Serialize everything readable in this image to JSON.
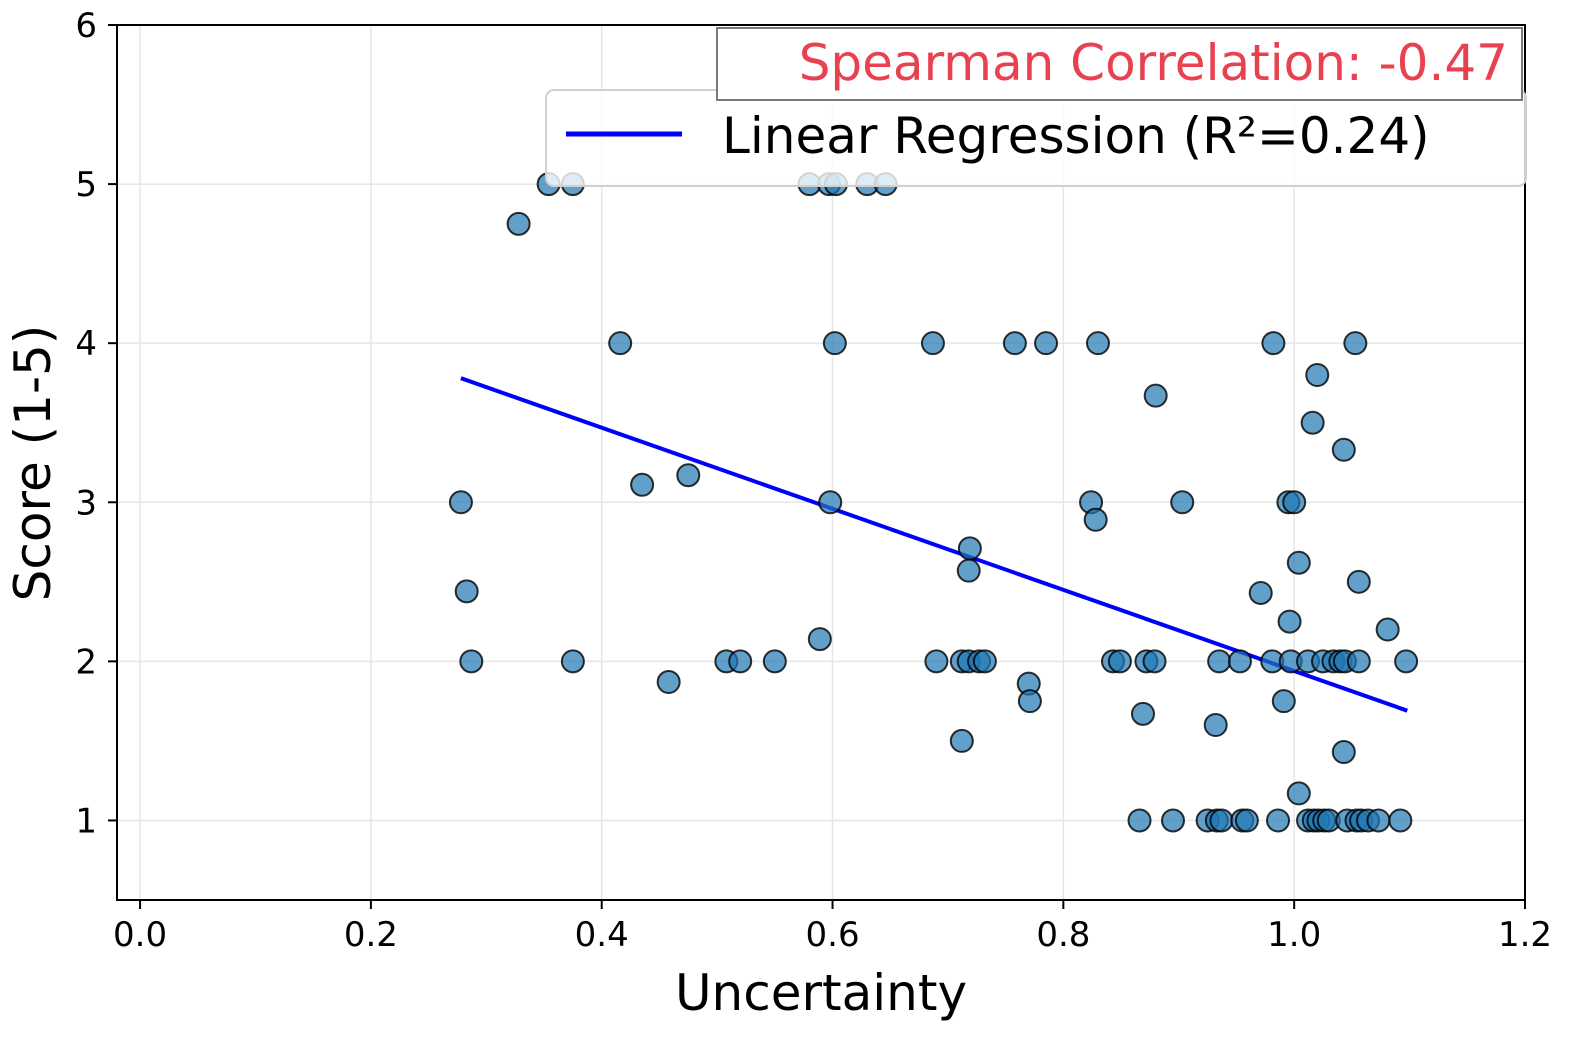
{
  "chart_data": {
    "type": "scatter",
    "xlabel": "Uncertainty",
    "ylabel": "Score (1-5)",
    "xlim": [
      -0.02,
      1.2
    ],
    "ylim": [
      0.5,
      6
    ],
    "xticks": [
      0.0,
      0.2,
      0.4,
      0.6,
      0.8,
      1.0,
      1.2
    ],
    "xtick_labels": [
      "0.0",
      "0.2",
      "0.4",
      "0.6",
      "0.8",
      "1.0",
      "1.2"
    ],
    "yticks": [
      1,
      2,
      3,
      4,
      5,
      6
    ],
    "ytick_labels": [
      "1",
      "2",
      "3",
      "4",
      "5",
      "6"
    ],
    "grid": true,
    "point_color": "#1f77b4",
    "line_color": "#0000ff",
    "annotation": {
      "text": "Spearman Correlation: -0.47",
      "color": "#e8414f",
      "placement": "top-right"
    },
    "legend": {
      "placement": "top-right",
      "entries": [
        {
          "label": "Linear Regression (R²=0.24)",
          "kind": "line"
        }
      ]
    },
    "regression": {
      "x": [
        0.278,
        1.098
      ],
      "y": [
        3.78,
        1.69
      ]
    },
    "points": [
      [
        0.354,
        5
      ],
      [
        0.375,
        5
      ],
      [
        0.58,
        5
      ],
      [
        0.597,
        5
      ],
      [
        0.603,
        5
      ],
      [
        0.63,
        5
      ],
      [
        0.646,
        5
      ],
      [
        0.328,
        4.75
      ],
      [
        0.416,
        4
      ],
      [
        0.602,
        4
      ],
      [
        0.687,
        4
      ],
      [
        0.758,
        4
      ],
      [
        0.785,
        4
      ],
      [
        0.83,
        4
      ],
      [
        0.982,
        4
      ],
      [
        1.053,
        4
      ],
      [
        1.02,
        3.8
      ],
      [
        0.88,
        3.67
      ],
      [
        1.016,
        3.5
      ],
      [
        1.043,
        3.33
      ],
      [
        0.475,
        3.17
      ],
      [
        0.435,
        3.11
      ],
      [
        0.278,
        3
      ],
      [
        0.598,
        3
      ],
      [
        0.824,
        3
      ],
      [
        0.903,
        3
      ],
      [
        0.995,
        3
      ],
      [
        1.0,
        3
      ],
      [
        0.828,
        2.89
      ],
      [
        0.719,
        2.71
      ],
      [
        1.004,
        2.62
      ],
      [
        0.718,
        2.57
      ],
      [
        1.056,
        2.5
      ],
      [
        0.283,
        2.44
      ],
      [
        0.971,
        2.43
      ],
      [
        0.996,
        2.25
      ],
      [
        1.081,
        2.2
      ],
      [
        0.589,
        2.14
      ],
      [
        0.287,
        2
      ],
      [
        0.375,
        2
      ],
      [
        0.508,
        2
      ],
      [
        0.52,
        2
      ],
      [
        0.55,
        2
      ],
      [
        0.69,
        2
      ],
      [
        0.712,
        2
      ],
      [
        0.718,
        2
      ],
      [
        0.727,
        2
      ],
      [
        0.732,
        2
      ],
      [
        0.843,
        2
      ],
      [
        0.849,
        2
      ],
      [
        0.872,
        2
      ],
      [
        0.879,
        2
      ],
      [
        0.935,
        2
      ],
      [
        0.953,
        2
      ],
      [
        0.981,
        2
      ],
      [
        0.997,
        2
      ],
      [
        1.012,
        2
      ],
      [
        1.025,
        2
      ],
      [
        1.034,
        2
      ],
      [
        1.04,
        2
      ],
      [
        1.044,
        2
      ],
      [
        1.056,
        2
      ],
      [
        1.097,
        2
      ],
      [
        0.458,
        1.87
      ],
      [
        0.77,
        1.86
      ],
      [
        0.771,
        1.75
      ],
      [
        0.991,
        1.75
      ],
      [
        0.869,
        1.67
      ],
      [
        0.932,
        1.6
      ],
      [
        0.712,
        1.5
      ],
      [
        1.043,
        1.43
      ],
      [
        1.004,
        1.17
      ],
      [
        0.866,
        1
      ],
      [
        0.895,
        1
      ],
      [
        0.925,
        1
      ],
      [
        0.933,
        1
      ],
      [
        0.937,
        1
      ],
      [
        0.955,
        1
      ],
      [
        0.959,
        1
      ],
      [
        0.986,
        1
      ],
      [
        1.012,
        1
      ],
      [
        1.017,
        1
      ],
      [
        1.021,
        1
      ],
      [
        1.026,
        1
      ],
      [
        1.03,
        1
      ],
      [
        1.046,
        1
      ],
      [
        1.054,
        1
      ],
      [
        1.058,
        1
      ],
      [
        1.064,
        1
      ],
      [
        1.073,
        1
      ],
      [
        1.092,
        1
      ]
    ]
  }
}
